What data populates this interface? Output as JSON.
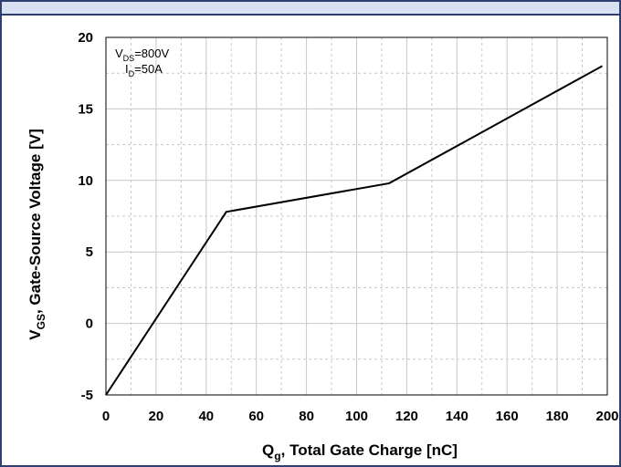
{
  "chart_data": {
    "type": "line",
    "x": [
      0,
      48,
      113,
      198
    ],
    "series": [
      {
        "values": [
          -5,
          7.8,
          9.8,
          18
        ]
      }
    ],
    "xlabel": {
      "main": "Q",
      "sub": "g",
      "rest": ", Total Gate Charge [nC]"
    },
    "ylabel": {
      "main": "V",
      "sub": "GS",
      "rest": ",  Gate-Source Voltage [V]"
    },
    "xlim": [
      0,
      200
    ],
    "ylim": [
      -5,
      20
    ],
    "xticks": [
      "0",
      "20",
      "40",
      "60",
      "80",
      "100",
      "120",
      "140",
      "160",
      "180",
      "200"
    ],
    "yticks": [
      "-5",
      "0",
      "5",
      "10",
      "15",
      "20"
    ],
    "grid": true,
    "annotations": [
      {
        "main": "V",
        "sub": "DS",
        "rest": "=800V"
      },
      {
        "main": "I",
        "sub": "D",
        "rest": "=50A"
      }
    ],
    "colors": {
      "line": "#000000",
      "grid": "#c8c8c8",
      "frame": "#2f3f6f",
      "band": "#d9e1f2"
    }
  }
}
